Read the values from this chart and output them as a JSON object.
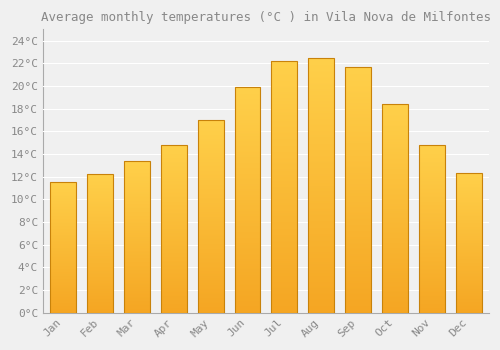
{
  "months": [
    "Jan",
    "Feb",
    "Mar",
    "Apr",
    "May",
    "Jun",
    "Jul",
    "Aug",
    "Sep",
    "Oct",
    "Nov",
    "Dec"
  ],
  "temperatures": [
    11.5,
    12.2,
    13.4,
    14.8,
    17.0,
    19.9,
    22.2,
    22.5,
    21.7,
    18.4,
    14.8,
    12.3
  ],
  "bar_color_top": "#FFD04A",
  "bar_color_bottom": "#F5A623",
  "bar_edge_color": "#C8820A",
  "title": "Average monthly temperatures (°C ) in Vila Nova de Milfontes",
  "ylim": [
    0,
    25
  ],
  "yticks": [
    0,
    2,
    4,
    6,
    8,
    10,
    12,
    14,
    16,
    18,
    20,
    22,
    24
  ],
  "ytick_labels": [
    "0°C",
    "2°C",
    "4°C",
    "6°C",
    "8°C",
    "10°C",
    "12°C",
    "14°C",
    "16°C",
    "18°C",
    "20°C",
    "22°C",
    "24°C"
  ],
  "background_color": "#f0f0f0",
  "plot_bg_color": "#f0f0f0",
  "grid_color": "#ffffff",
  "title_fontsize": 9,
  "tick_fontsize": 8,
  "font_color": "#888888",
  "bar_width": 0.7
}
